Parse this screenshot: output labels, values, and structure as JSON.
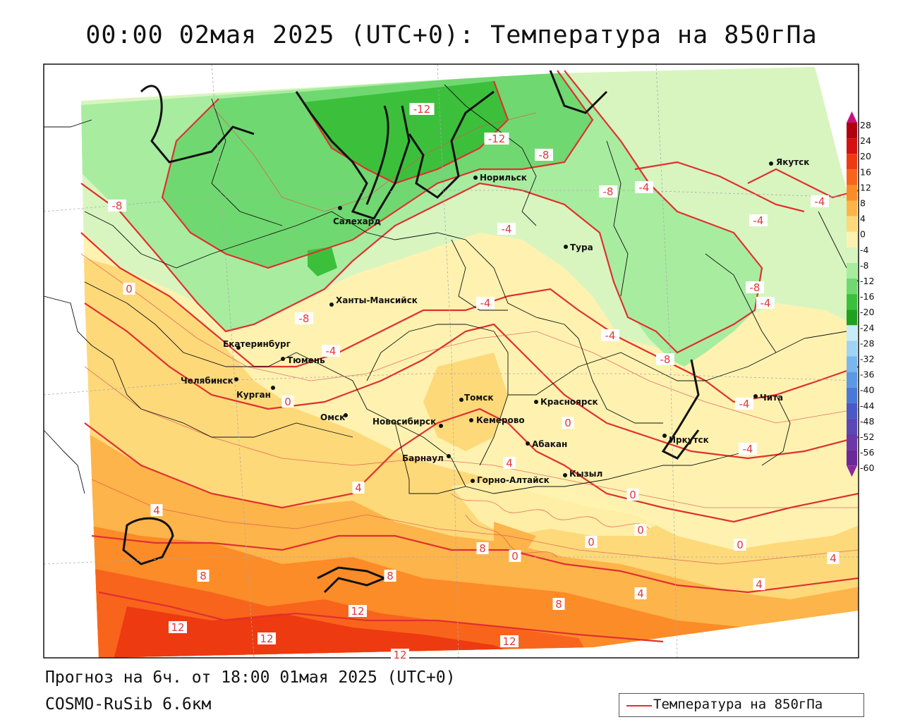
{
  "title": "00:00 02мая 2025 (UTC+0): Температура на 850гПа",
  "forecast_line": "Прогноз на 6ч. от 18:00 01мая 2025 (UTC+0)",
  "model_line": "COSMO-RuSib 6.6км",
  "legend": {
    "label": "Температура на 850гПа",
    "line_color": "#e03030"
  },
  "colorbar": {
    "labels": [
      "28",
      "24",
      "20",
      "16",
      "12",
      "8",
      "4",
      "0",
      "-4",
      "-8",
      "-12",
      "-16",
      "-20",
      "-24",
      "-28",
      "-32",
      "-36",
      "-40",
      "-44",
      "-48",
      "-52",
      "-56",
      "-60"
    ],
    "colors": [
      "#b00010",
      "#d41010",
      "#ee3a10",
      "#f8641c",
      "#fb8c28",
      "#fdb44a",
      "#fed97a",
      "#fff2b0",
      "#d8f5c0",
      "#a8eca0",
      "#70d870",
      "#3cc03c",
      "#20a020",
      "#c8ecf8",
      "#a0d4f4",
      "#78b8ee",
      "#5c98e4",
      "#4a78d8",
      "#4a58c8",
      "#5a48b8",
      "#6a38a8",
      "#6a2898"
    ],
    "top_arrow_color": "#c8107a",
    "bottom_arrow_color": "#8a2aa0"
  },
  "cities": [
    {
      "name": "Салехард"
    },
    {
      "name": "Норильск"
    },
    {
      "name": "Якутск"
    },
    {
      "name": "Тура"
    },
    {
      "name": "Ханты-Мансийск"
    },
    {
      "name": "Екатеринбург"
    },
    {
      "name": "Тюмень"
    },
    {
      "name": "Челябинск"
    },
    {
      "name": "Курган"
    },
    {
      "name": "Омск"
    },
    {
      "name": "Новосибирск"
    },
    {
      "name": "Томск"
    },
    {
      "name": "Кемерово"
    },
    {
      "name": "Красноярск"
    },
    {
      "name": "Барнаул"
    },
    {
      "name": "Абакан"
    },
    {
      "name": "Иркутск"
    },
    {
      "name": "Чита"
    },
    {
      "name": "Горно-Алтайск"
    },
    {
      "name": "Кызыл"
    }
  ],
  "contour_labels": [
    "-12",
    "-12",
    "-8",
    "-8",
    "-8",
    "-8",
    "-8",
    "-8",
    "-4",
    "-4",
    "-4",
    "-4",
    "-4",
    "-4",
    "-4",
    "-4",
    "-4",
    "-4",
    "0",
    "0",
    "0",
    "0",
    "0",
    "0",
    "0",
    "0",
    "4",
    "4",
    "4",
    "4",
    "4",
    "4",
    "8",
    "8",
    "8",
    "8",
    "12",
    "12",
    "12",
    "12",
    "12"
  ]
}
